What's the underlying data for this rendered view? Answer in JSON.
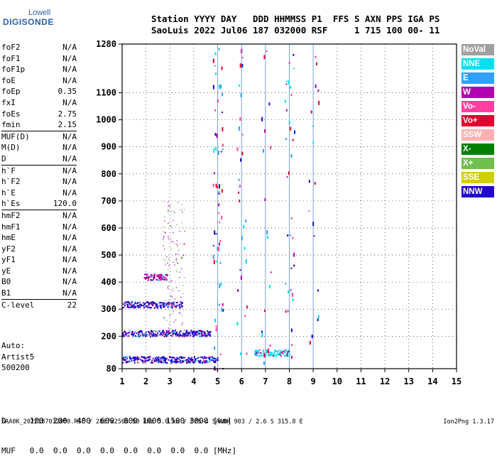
{
  "logo": {
    "top": "Lowell",
    "bottom": "DIGISONDE"
  },
  "header": {
    "line1": "Station YYYY DAY   DDD HHMMSS P1  FFS S AXN PPS IGA PS",
    "line2": "SaoLuis 2022 Jul06 187 032000 RSF     1 715 100 00- 11"
  },
  "params": [
    [
      [
        "foF2",
        "N/A"
      ],
      [
        "foF1",
        "N/A"
      ],
      [
        "foF1p",
        "N/A"
      ],
      [
        "foE",
        "N/A"
      ],
      [
        "foEp",
        "0.35"
      ],
      [
        "fxI",
        "N/A"
      ],
      [
        "foEs",
        "2.75"
      ],
      [
        "fmin",
        "2.15"
      ]
    ],
    [
      [
        "MUF(D)",
        "N/A"
      ],
      [
        "M(D)",
        "N/A"
      ],
      [
        "D",
        "N/A"
      ]
    ],
    [
      [
        "h`F",
        "N/A"
      ],
      [
        "h`F2",
        "N/A"
      ],
      [
        "h`E",
        "N/A"
      ],
      [
        "h`Es",
        "120.0"
      ]
    ],
    [
      [
        "hmF2",
        "N/A"
      ],
      [
        "hmF1",
        "N/A"
      ],
      [
        "hmE",
        "N/A"
      ],
      [
        "yF2",
        "N/A"
      ],
      [
        "yF1",
        "N/A"
      ],
      [
        "yE",
        "N/A"
      ],
      [
        "B0",
        "N/A"
      ],
      [
        "B1",
        "N/A"
      ]
    ],
    [
      [
        "C-level",
        "22"
      ]
    ]
  ],
  "info": [
    "Auto:",
    "Artist5",
    "500200"
  ],
  "legend": [
    {
      "label": "NoVal",
      "color": "#a0a0a0"
    },
    {
      "label": "NNE",
      "color": "#00e0f0"
    },
    {
      "label": "E",
      "color": "#30a0ff"
    },
    {
      "label": "W",
      "color": "#b000b0"
    },
    {
      "label": "Vo-",
      "color": "#ff40a0"
    },
    {
      "label": "Vo+",
      "color": "#e00030"
    },
    {
      "label": "SSW",
      "color": "#ffb0b0"
    },
    {
      "label": "X-",
      "color": "#008000"
    },
    {
      "label": "X+",
      "color": "#70c050"
    },
    {
      "label": "SSE",
      "color": "#d0d000"
    },
    {
      "label": "NNW",
      "color": "#2000d0"
    }
  ],
  "footer": {
    "line1": "D     100  200  400  600  800 1000 1500 3000 [km]",
    "line2": "MUF   0.0  0.0  0.0  0.0  0.0  0.0  0.0  0.0 [MHz]"
  },
  "status_line": "SAA0K_2022187032000.RSF / 280fx256h 50 kHz 5.0 km / DPS-4 SAA0K 903 / 2.6 S 315.8 E",
  "version": "Ion2Png 1.3.17",
  "chart_data": {
    "type": "scatter",
    "xlabel": "",
    "ylabel": "",
    "xlim": [
      1,
      15
    ],
    "ylim": [
      80,
      1280
    ],
    "x_ticks": [
      1,
      2,
      3,
      4,
      5,
      6,
      7,
      8,
      9,
      10,
      11,
      12,
      13,
      14,
      15
    ],
    "y_ticks": [
      80,
      200,
      300,
      400,
      500,
      600,
      700,
      800,
      900,
      1000,
      1100,
      1280
    ],
    "grid": true,
    "dotted_verticals": [
      5,
      6,
      7,
      8,
      9
    ],
    "traces": [
      {
        "name": "NNW",
        "x_range": [
          1.0,
          5.0
        ],
        "height": 115
      },
      {
        "name": "NNW",
        "x_range": [
          1.0,
          4.7
        ],
        "height": 212
      },
      {
        "name": "NNW",
        "x_range": [
          1.0,
          3.5
        ],
        "height": 318
      },
      {
        "name": "W",
        "x_range": [
          1.9,
          2.9
        ],
        "height": 420
      },
      {
        "name": "NNE",
        "x_range": [
          6.5,
          8.0
        ],
        "height": 140
      }
    ]
  }
}
